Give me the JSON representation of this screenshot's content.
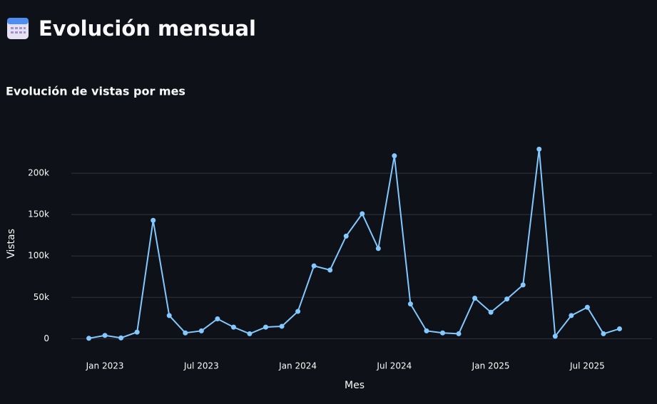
{
  "header": {
    "title": "Evolución mensual"
  },
  "chart_data": {
    "type": "line",
    "title": "Evolución de vistas por mes",
    "x_label": "Mes",
    "y_label": "Vistas",
    "x": [
      "2022-12",
      "2023-01",
      "2023-02",
      "2023-03",
      "2023-04",
      "2023-05",
      "2023-06",
      "2023-07",
      "2023-08",
      "2023-09",
      "2023-10",
      "2023-11",
      "2023-12",
      "2024-01",
      "2024-02",
      "2024-03",
      "2024-04",
      "2024-05",
      "2024-06",
      "2024-07",
      "2024-08",
      "2024-09",
      "2024-10",
      "2024-11",
      "2024-12",
      "2025-01",
      "2025-02",
      "2025-03",
      "2025-04",
      "2025-05",
      "2025-06",
      "2025-07",
      "2025-08",
      "2025-09"
    ],
    "series": [
      {
        "name": "Vistas",
        "color": "#83c9ff",
        "values": [
          500,
          4000,
          1000,
          8000,
          143000,
          28000,
          7000,
          9500,
          24000,
          14000,
          6000,
          14000,
          15000,
          33000,
          88000,
          83000,
          124000,
          151000,
          109000,
          221000,
          42000,
          9500,
          7000,
          6000,
          49000,
          32000,
          48000,
          65000,
          229000,
          3000,
          28000,
          38000,
          6000,
          12000
        ]
      }
    ],
    "xlim": [
      "2022-11",
      "2025-10"
    ],
    "xticks": [
      {
        "value": "2023-01",
        "label": "Jan 2023"
      },
      {
        "value": "2023-07",
        "label": "Jul 2023"
      },
      {
        "value": "2024-01",
        "label": "Jan 2024"
      },
      {
        "value": "2024-07",
        "label": "Jul 2024"
      },
      {
        "value": "2025-01",
        "label": "Jan 2025"
      },
      {
        "value": "2025-07",
        "label": "Jul 2025"
      }
    ],
    "ylim": [
      -10000,
      250000
    ],
    "yticks": [
      0,
      {
        "value": 50000,
        "label": "50k"
      },
      {
        "value": 100000,
        "label": "100k"
      },
      {
        "value": 150000,
        "label": "150k"
      },
      {
        "value": 200000,
        "label": "200k"
      }
    ],
    "grid": true
  }
}
